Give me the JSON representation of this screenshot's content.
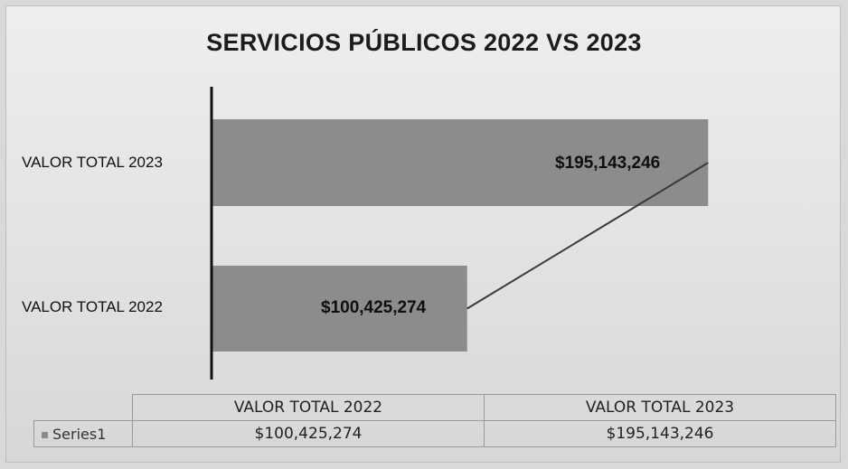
{
  "chart_data": {
    "type": "bar",
    "orientation": "horizontal",
    "title": "SERVICIOS PÚBLICOS 2022 VS 2023",
    "categories": [
      "VALOR TOTAL 2022",
      "VALOR TOTAL 2023"
    ],
    "series": [
      {
        "name": "Series1",
        "values": [
          100425274,
          195143246
        ],
        "color": "#8c8c8c"
      }
    ],
    "data_labels": [
      "$100,425,274",
      "$195,143,246"
    ],
    "trendline": true,
    "xlim": [
      0,
      200000000
    ],
    "grid": false,
    "legend": "data-table"
  },
  "data_table": {
    "headers": [
      "VALOR TOTAL 2022",
      "VALOR TOTAL 2023"
    ],
    "series_label": "Series1",
    "values": [
      "$100,425,274",
      "$195,143,246"
    ]
  }
}
